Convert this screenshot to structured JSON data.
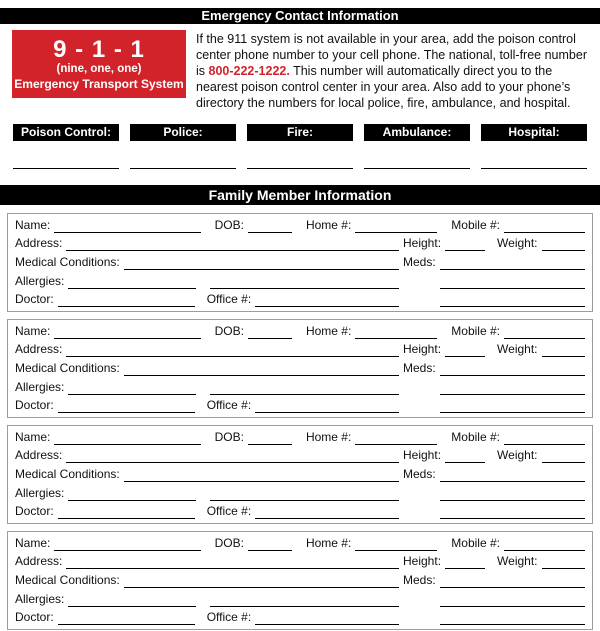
{
  "header": {
    "title": "Emergency Contact Information"
  },
  "emergency": {
    "number_display": "9 - 1 - 1",
    "number_words": "(nine, one, one)",
    "number_caption": "Emergency Transport System",
    "paragraph_before": "If the 911 system is not available in your area, add the poison control center phone number to your cell phone. The national, toll-free number is ",
    "phone_number": "800-222-1222.",
    "paragraph_after": " This number will automatically direct you to the nearest poison control center in your area. Also add to your phone’s directory the numbers for local police, fire, ambulance, and hospital."
  },
  "contacts": {
    "labels": [
      "Poison Control:",
      "Police:",
      "Fire:",
      "Ambulance:",
      "Hospital:"
    ]
  },
  "family": {
    "title": "Family Member Information",
    "member_count": 4,
    "field_labels": {
      "name": "Name:",
      "dob": "DOB:",
      "home": "Home #:",
      "mobile": "Mobile #:",
      "address": "Address:",
      "height": "Height:",
      "weight": "Weight:",
      "medical": "Medical Conditions:",
      "meds": "Meds:",
      "allergies": "Allergies:",
      "doctor": "Doctor:",
      "office": "Office #:"
    }
  },
  "colors": {
    "accent_red": "#d2232a",
    "bar_black": "#000000",
    "box_border": "#9c9c9c"
  }
}
